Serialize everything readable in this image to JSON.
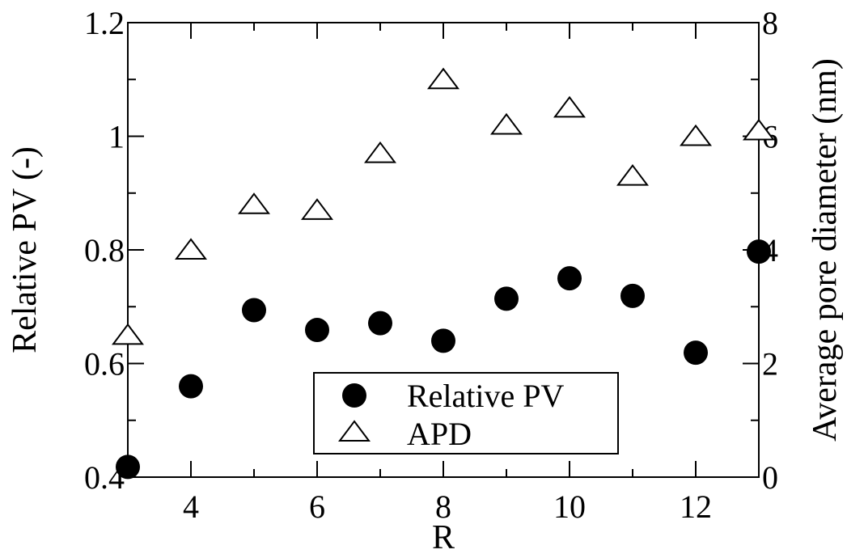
{
  "chart_data": {
    "type": "scatter",
    "title": "",
    "xlabel": "R",
    "ylabel": "Relative PV (-)",
    "y2label": "Average pore diameter (nm)",
    "xlim": [
      3,
      13
    ],
    "ylim": [
      0.4,
      1.2
    ],
    "y2lim": [
      0,
      8
    ],
    "x_ticks": [
      "4",
      "6",
      "8",
      "10",
      "12"
    ],
    "y_ticks": [
      "0.4",
      "0.6",
      "0.8",
      "1",
      "1.2"
    ],
    "y2_ticks": [
      "0",
      "2",
      "4",
      "6",
      "8"
    ],
    "grid": false,
    "legend_position": "bottom-center",
    "series": [
      {
        "name": "Relative PV",
        "axis": "left",
        "marker": "filled-circle",
        "color": "#000000",
        "x": [
          3,
          4,
          5,
          6,
          7,
          8,
          9,
          10,
          11,
          12,
          13
        ],
        "y": [
          0.418,
          0.56,
          0.694,
          0.659,
          0.671,
          0.64,
          0.714,
          0.75,
          0.719,
          0.619,
          0.797
        ]
      },
      {
        "name": "APD",
        "axis": "right",
        "marker": "open-triangle",
        "color": "#000000",
        "x": [
          3,
          4,
          5,
          6,
          7,
          8,
          9,
          10,
          11,
          12,
          13
        ],
        "y": [
          2.5,
          4.0,
          4.8,
          4.7,
          5.7,
          7.0,
          6.2,
          6.5,
          5.3,
          6.0,
          6.1
        ]
      }
    ]
  }
}
